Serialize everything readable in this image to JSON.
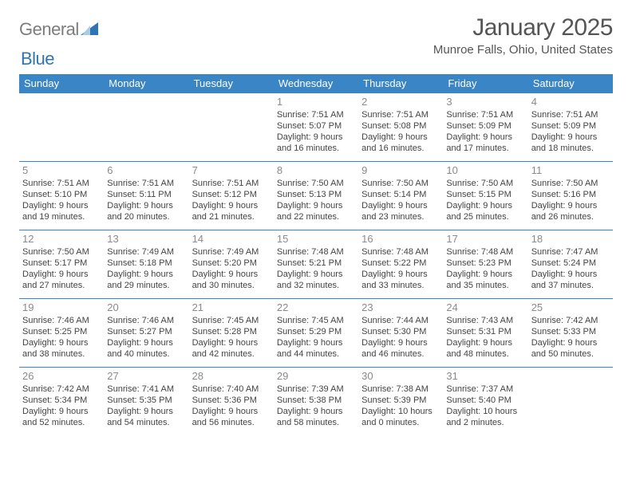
{
  "brand": {
    "part1": "General",
    "part2": "Blue"
  },
  "title": "January 2025",
  "location": "Munroe Falls, Ohio, United States",
  "header_bg": "#3a85c6",
  "header_fg": "#ffffff",
  "rule_color": "#3a85c6",
  "day_headers": [
    "Sunday",
    "Monday",
    "Tuesday",
    "Wednesday",
    "Thursday",
    "Friday",
    "Saturday"
  ],
  "weeks": [
    [
      null,
      null,
      null,
      {
        "n": "1",
        "sunrise": "7:51 AM",
        "sunset": "5:07 PM",
        "dl1": "Daylight: 9 hours",
        "dl2": "and 16 minutes."
      },
      {
        "n": "2",
        "sunrise": "7:51 AM",
        "sunset": "5:08 PM",
        "dl1": "Daylight: 9 hours",
        "dl2": "and 16 minutes."
      },
      {
        "n": "3",
        "sunrise": "7:51 AM",
        "sunset": "5:09 PM",
        "dl1": "Daylight: 9 hours",
        "dl2": "and 17 minutes."
      },
      {
        "n": "4",
        "sunrise": "7:51 AM",
        "sunset": "5:09 PM",
        "dl1": "Daylight: 9 hours",
        "dl2": "and 18 minutes."
      }
    ],
    [
      {
        "n": "5",
        "sunrise": "7:51 AM",
        "sunset": "5:10 PM",
        "dl1": "Daylight: 9 hours",
        "dl2": "and 19 minutes."
      },
      {
        "n": "6",
        "sunrise": "7:51 AM",
        "sunset": "5:11 PM",
        "dl1": "Daylight: 9 hours",
        "dl2": "and 20 minutes."
      },
      {
        "n": "7",
        "sunrise": "7:51 AM",
        "sunset": "5:12 PM",
        "dl1": "Daylight: 9 hours",
        "dl2": "and 21 minutes."
      },
      {
        "n": "8",
        "sunrise": "7:50 AM",
        "sunset": "5:13 PM",
        "dl1": "Daylight: 9 hours",
        "dl2": "and 22 minutes."
      },
      {
        "n": "9",
        "sunrise": "7:50 AM",
        "sunset": "5:14 PM",
        "dl1": "Daylight: 9 hours",
        "dl2": "and 23 minutes."
      },
      {
        "n": "10",
        "sunrise": "7:50 AM",
        "sunset": "5:15 PM",
        "dl1": "Daylight: 9 hours",
        "dl2": "and 25 minutes."
      },
      {
        "n": "11",
        "sunrise": "7:50 AM",
        "sunset": "5:16 PM",
        "dl1": "Daylight: 9 hours",
        "dl2": "and 26 minutes."
      }
    ],
    [
      {
        "n": "12",
        "sunrise": "7:50 AM",
        "sunset": "5:17 PM",
        "dl1": "Daylight: 9 hours",
        "dl2": "and 27 minutes."
      },
      {
        "n": "13",
        "sunrise": "7:49 AM",
        "sunset": "5:18 PM",
        "dl1": "Daylight: 9 hours",
        "dl2": "and 29 minutes."
      },
      {
        "n": "14",
        "sunrise": "7:49 AM",
        "sunset": "5:20 PM",
        "dl1": "Daylight: 9 hours",
        "dl2": "and 30 minutes."
      },
      {
        "n": "15",
        "sunrise": "7:48 AM",
        "sunset": "5:21 PM",
        "dl1": "Daylight: 9 hours",
        "dl2": "and 32 minutes."
      },
      {
        "n": "16",
        "sunrise": "7:48 AM",
        "sunset": "5:22 PM",
        "dl1": "Daylight: 9 hours",
        "dl2": "and 33 minutes."
      },
      {
        "n": "17",
        "sunrise": "7:48 AM",
        "sunset": "5:23 PM",
        "dl1": "Daylight: 9 hours",
        "dl2": "and 35 minutes."
      },
      {
        "n": "18",
        "sunrise": "7:47 AM",
        "sunset": "5:24 PM",
        "dl1": "Daylight: 9 hours",
        "dl2": "and 37 minutes."
      }
    ],
    [
      {
        "n": "19",
        "sunrise": "7:46 AM",
        "sunset": "5:25 PM",
        "dl1": "Daylight: 9 hours",
        "dl2": "and 38 minutes."
      },
      {
        "n": "20",
        "sunrise": "7:46 AM",
        "sunset": "5:27 PM",
        "dl1": "Daylight: 9 hours",
        "dl2": "and 40 minutes."
      },
      {
        "n": "21",
        "sunrise": "7:45 AM",
        "sunset": "5:28 PM",
        "dl1": "Daylight: 9 hours",
        "dl2": "and 42 minutes."
      },
      {
        "n": "22",
        "sunrise": "7:45 AM",
        "sunset": "5:29 PM",
        "dl1": "Daylight: 9 hours",
        "dl2": "and 44 minutes."
      },
      {
        "n": "23",
        "sunrise": "7:44 AM",
        "sunset": "5:30 PM",
        "dl1": "Daylight: 9 hours",
        "dl2": "and 46 minutes."
      },
      {
        "n": "24",
        "sunrise": "7:43 AM",
        "sunset": "5:31 PM",
        "dl1": "Daylight: 9 hours",
        "dl2": "and 48 minutes."
      },
      {
        "n": "25",
        "sunrise": "7:42 AM",
        "sunset": "5:33 PM",
        "dl1": "Daylight: 9 hours",
        "dl2": "and 50 minutes."
      }
    ],
    [
      {
        "n": "26",
        "sunrise": "7:42 AM",
        "sunset": "5:34 PM",
        "dl1": "Daylight: 9 hours",
        "dl2": "and 52 minutes."
      },
      {
        "n": "27",
        "sunrise": "7:41 AM",
        "sunset": "5:35 PM",
        "dl1": "Daylight: 9 hours",
        "dl2": "and 54 minutes."
      },
      {
        "n": "28",
        "sunrise": "7:40 AM",
        "sunset": "5:36 PM",
        "dl1": "Daylight: 9 hours",
        "dl2": "and 56 minutes."
      },
      {
        "n": "29",
        "sunrise": "7:39 AM",
        "sunset": "5:38 PM",
        "dl1": "Daylight: 9 hours",
        "dl2": "and 58 minutes."
      },
      {
        "n": "30",
        "sunrise": "7:38 AM",
        "sunset": "5:39 PM",
        "dl1": "Daylight: 10 hours",
        "dl2": "and 0 minutes."
      },
      {
        "n": "31",
        "sunrise": "7:37 AM",
        "sunset": "5:40 PM",
        "dl1": "Daylight: 10 hours",
        "dl2": "and 2 minutes."
      },
      null
    ]
  ]
}
